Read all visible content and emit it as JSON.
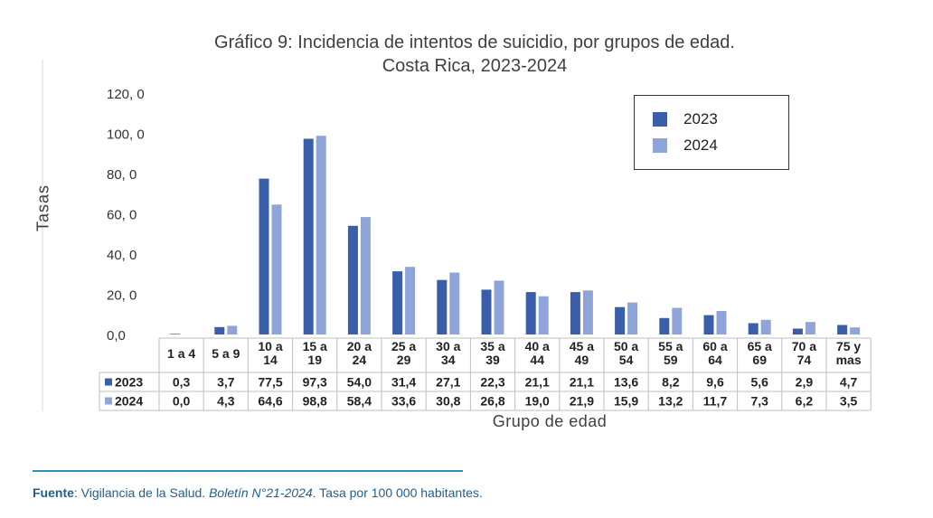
{
  "chart_data": {
    "type": "bar",
    "title": "Gráfico 9: Incidencia de intentos de suicidio, por grupos de edad.",
    "subtitle": "Costa Rica, 2023-2024",
    "xlabel": "Grupo de edad",
    "ylabel": "Tasas",
    "ylim": [
      0,
      120
    ],
    "yticks": [
      "120, 0",
      "100, 0",
      "80, 0",
      "60, 0",
      "40, 0",
      "20, 0",
      "0,0"
    ],
    "ytick_values": [
      120,
      100,
      80,
      60,
      40,
      20,
      0
    ],
    "categories": [
      [
        "1 a 4"
      ],
      [
        "5 a 9"
      ],
      [
        "10 a",
        "14"
      ],
      [
        "15 a",
        "19"
      ],
      [
        "20 a",
        "24"
      ],
      [
        "25 a",
        "29"
      ],
      [
        "30 a",
        "34"
      ],
      [
        "35 a",
        "39"
      ],
      [
        "40 a",
        "44"
      ],
      [
        "45 a",
        "49"
      ],
      [
        "50 a",
        "54"
      ],
      [
        "55 a",
        "59"
      ],
      [
        "60 a",
        "64"
      ],
      [
        "65 a",
        "69"
      ],
      [
        "70 a",
        "74"
      ],
      [
        "75 y",
        "mas"
      ]
    ],
    "series": [
      {
        "name": "2023",
        "color": "#3b5eab",
        "values": [
          0.3,
          3.7,
          77.5,
          97.3,
          54.0,
          31.4,
          27.1,
          22.3,
          21.1,
          21.1,
          13.6,
          8.2,
          9.6,
          5.6,
          2.9,
          4.7
        ],
        "labels": [
          "0,3",
          "3,7",
          "77,5",
          "97,3",
          "54,0",
          "31,4",
          "27,1",
          "22,3",
          "21,1",
          "21,1",
          "13,6",
          "8,2",
          "9,6",
          "5,6",
          "2,9",
          "4,7"
        ]
      },
      {
        "name": "2024",
        "color": "#8fa4d8",
        "values": [
          0.0,
          4.3,
          64.6,
          98.8,
          58.4,
          33.6,
          30.8,
          26.8,
          19.0,
          21.9,
          15.9,
          13.2,
          11.7,
          7.3,
          6.2,
          3.5
        ],
        "labels": [
          "0,0",
          "4,3",
          "64,6",
          "98,8",
          "58,4",
          "33,6",
          "30,8",
          "26,8",
          "19,0",
          "21,9",
          "15,9",
          "13,2",
          "11,7",
          "7,3",
          "6,2",
          "3,5"
        ]
      }
    ],
    "legend": {
      "position": "top-right",
      "border": true
    },
    "grid": false,
    "data_table": true
  },
  "source": {
    "label": "Fuente",
    "text": ": Vigilancia de la Salud. ",
    "italic": "Boletín N°21-2024",
    "tail": ". Tasa por 100 000 habitantes."
  }
}
